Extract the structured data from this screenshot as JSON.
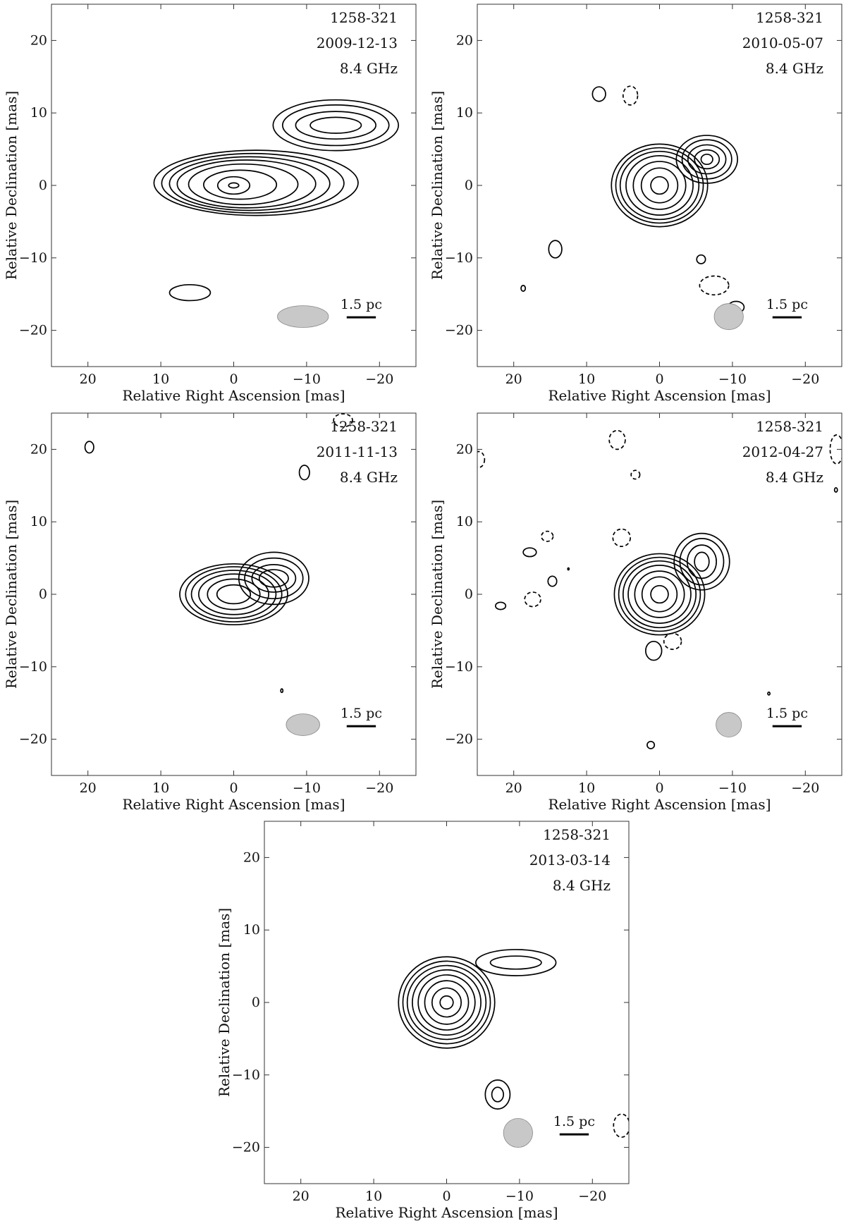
{
  "chart_data": {
    "type": "contour",
    "panels": [
      {
        "source": "1258-321",
        "date": "2009-12-13",
        "frequency": "8.4 GHz",
        "scale_label": "1.5 pc",
        "xlabel": "Relative Right Ascension [mas]",
        "ylabel": "Relative Declination [mas]",
        "xlim": [
          25,
          -25
        ],
        "ylim": [
          -25,
          25
        ],
        "xticks": [
          20,
          10,
          0,
          -10,
          -20
        ],
        "yticks": [
          20,
          10,
          0,
          -10,
          -20
        ],
        "beam": {
          "x": -9.5,
          "y": -18.1,
          "major": 7,
          "minor": 3,
          "pa_deg": 0
        },
        "scalebar": {
          "x1": -15.5,
          "x2": -19.5,
          "y": -18.2
        },
        "components": [
          {
            "x": 0,
            "y": 0,
            "levels": [
              [
                0.7,
                0.35
              ],
              [
                2.2,
                1.2
              ],
              [
                5,
                2
              ],
              [
                7.5,
                2.8
              ],
              [
                9.5,
                3.3
              ],
              [
                11,
                3.7
              ],
              [
                12.5,
                4.1
              ],
              [
                14,
                4.5
              ]
            ],
            "kind": "core",
            "tail_dx": 3.5,
            "tail_dy": 0.4
          },
          {
            "x": -14,
            "y": 8.3,
            "levels": [
              [
                3.5,
                1.1
              ],
              [
                5.5,
                1.9
              ],
              [
                7.3,
                2.8
              ],
              [
                8.6,
                3.5
              ]
            ],
            "kind": "blob"
          },
          {
            "x": 6,
            "y": -14.8,
            "levels": [
              [
                2.8,
                1.1
              ]
            ],
            "kind": "blob"
          }
        ],
        "negative": []
      },
      {
        "source": "1258-321",
        "date": "2010-05-07",
        "frequency": "8.4 GHz",
        "scale_label": "1.5 pc",
        "xlabel": "Relative Right Ascension [mas]",
        "ylabel": "Relative Declination [mas]",
        "xlim": [
          25,
          -25
        ],
        "ylim": [
          -25,
          25
        ],
        "xticks": [
          20,
          10,
          0,
          -10,
          -20
        ],
        "yticks": [
          20,
          10,
          0,
          -10,
          -20
        ],
        "beam": {
          "x": -9.5,
          "y": -18.1,
          "major": 4,
          "minor": 3.6,
          "pa_deg": 0
        },
        "scalebar": {
          "x1": -15.5,
          "x2": -19.5,
          "y": -18.2
        },
        "components": [
          {
            "x": 0,
            "y": 0,
            "levels": [
              [
                1.2,
                1.2
              ],
              [
                2.5,
                2.4
              ],
              [
                3.6,
                3.3
              ],
              [
                4.6,
                4.1
              ],
              [
                5.4,
                4.7
              ],
              [
                6,
                5.2
              ],
              [
                6.6,
                5.7
              ]
            ],
            "kind": "core"
          },
          {
            "x": -6.5,
            "y": 3.6,
            "levels": [
              [
                0.8,
                0.7
              ],
              [
                1.7,
                1.3
              ],
              [
                2.6,
                2
              ],
              [
                3.4,
                2.7
              ],
              [
                4.2,
                3.3
              ]
            ],
            "kind": "blob"
          },
          {
            "x": 8.3,
            "y": 12.6,
            "levels": [
              [
                0.9,
                1
              ]
            ],
            "kind": "blob"
          },
          {
            "x": 14.3,
            "y": -8.8,
            "levels": [
              [
                0.9,
                1.2
              ]
            ],
            "kind": "blob"
          },
          {
            "x": 18.7,
            "y": -14.2,
            "levels": [
              [
                0.3,
                0.4
              ]
            ],
            "kind": "blob"
          },
          {
            "x": -5.7,
            "y": -10.2,
            "levels": [
              [
                0.6,
                0.6
              ]
            ],
            "kind": "blob"
          },
          {
            "x": -10.5,
            "y": -16.8,
            "levels": [
              [
                1.1,
                0.8
              ]
            ],
            "kind": "blob"
          }
        ],
        "negative": [
          {
            "x": 4,
            "y": 12.4,
            "rx": 1,
            "ry": 1.3
          },
          {
            "x": -7.5,
            "y": -13.8,
            "rx": 2,
            "ry": 1.3
          }
        ]
      },
      {
        "source": "1258-321",
        "date": "2011-11-13",
        "frequency": "8.4 GHz",
        "scale_label": "1.5 pc",
        "xlabel": "Relative Right Ascension [mas]",
        "ylabel": "Relative Declination [mas]",
        "xlim": [
          25,
          -25
        ],
        "ylim": [
          -25,
          25
        ],
        "xticks": [
          20,
          10,
          0,
          -10,
          -20
        ],
        "yticks": [
          20,
          10,
          0,
          -10,
          -20
        ],
        "beam": {
          "x": -9.5,
          "y": -18.0,
          "major": 4.6,
          "minor": 3,
          "pa_deg": 0
        },
        "scalebar": {
          "x1": -15.5,
          "x2": -19.5,
          "y": -18.2
        },
        "components": [
          {
            "x": 0,
            "y": 0,
            "levels": [
              [
                2.3,
                1.3
              ],
              [
                3.6,
                2.1
              ],
              [
                4.8,
                2.8
              ],
              [
                5.8,
                3.3
              ],
              [
                6.6,
                3.8
              ],
              [
                7.4,
                4.2
              ]
            ],
            "kind": "core"
          },
          {
            "x": -5.5,
            "y": 2.2,
            "levels": [
              [
                2,
                1.2
              ],
              [
                3,
                1.9
              ],
              [
                4,
                2.8
              ],
              [
                4.8,
                3.6
              ]
            ],
            "kind": "blob"
          },
          {
            "x": 19.8,
            "y": 20.3,
            "levels": [
              [
                0.6,
                0.8
              ]
            ],
            "kind": "blob"
          },
          {
            "x": -9.7,
            "y": 16.8,
            "levels": [
              [
                0.7,
                1
              ]
            ],
            "kind": "blob"
          },
          {
            "x": -6.6,
            "y": -13.3,
            "levels": [
              [
                0.15,
                0.25
              ]
            ],
            "kind": "blob"
          }
        ],
        "negative": [
          {
            "x": -15,
            "y": 24,
            "rx": 1.3,
            "ry": 0.9
          }
        ]
      },
      {
        "source": "1258-321",
        "date": "2012-04-27",
        "frequency": "8.4 GHz",
        "scale_label": "1.5 pc",
        "xlabel": "Relative Right Ascension [mas]",
        "ylabel": "Relative Declination [mas]",
        "xlim": [
          25,
          -25
        ],
        "ylim": [
          -25,
          25
        ],
        "xticks": [
          20,
          10,
          0,
          -10,
          -20
        ],
        "yticks": [
          20,
          10,
          0,
          -10,
          -20
        ],
        "beam": {
          "x": -9.5,
          "y": -18.0,
          "major": 3.5,
          "minor": 3.4,
          "pa_deg": 0
        },
        "scalebar": {
          "x1": -15.5,
          "x2": -19.5,
          "y": -18.2
        },
        "components": [
          {
            "x": 0,
            "y": 0,
            "levels": [
              [
                1.2,
                1.2
              ],
              [
                2.4,
                2.4
              ],
              [
                3.4,
                3.2
              ],
              [
                4.3,
                4
              ],
              [
                5,
                4.6
              ],
              [
                5.6,
                5.1
              ],
              [
                6.2,
                5.6
              ]
            ],
            "kind": "core"
          },
          {
            "x": -5.8,
            "y": 4.5,
            "levels": [
              [
                1,
                1.3
              ],
              [
                2,
                2.3
              ],
              [
                3,
                3.2
              ],
              [
                3.8,
                3.9
              ]
            ],
            "kind": "blob"
          },
          {
            "x": 17.8,
            "y": 5.8,
            "levels": [
              [
                0.9,
                0.6
              ]
            ],
            "kind": "blob"
          },
          {
            "x": 14.7,
            "y": 1.8,
            "levels": [
              [
                0.6,
                0.7
              ]
            ],
            "kind": "blob"
          },
          {
            "x": 21.8,
            "y": -1.6,
            "levels": [
              [
                0.7,
                0.5
              ]
            ],
            "kind": "blob"
          },
          {
            "x": 12.5,
            "y": 3.5,
            "levels": [
              [
                0.1,
                0.15
              ]
            ],
            "kind": "blob"
          },
          {
            "x": 0.8,
            "y": -7.8,
            "levels": [
              [
                1.1,
                1.3
              ]
            ],
            "kind": "blob"
          },
          {
            "x": 1.2,
            "y": -20.8,
            "levels": [
              [
                0.5,
                0.5
              ]
            ],
            "kind": "blob"
          },
          {
            "x": -15,
            "y": -13.7,
            "levels": [
              [
                0.15,
                0.2
              ]
            ],
            "kind": "blob"
          },
          {
            "x": -24.2,
            "y": 14.4,
            "levels": [
              [
                0.2,
                0.3
              ]
            ],
            "kind": "blob"
          }
        ],
        "negative": [
          {
            "x": 5.8,
            "y": 21.3,
            "rx": 1.1,
            "ry": 1.3
          },
          {
            "x": 3.3,
            "y": 16.5,
            "rx": 0.6,
            "ry": 0.6
          },
          {
            "x": 5.2,
            "y": 7.8,
            "rx": 1.2,
            "ry": 1.2
          },
          {
            "x": 15.4,
            "y": 8,
            "rx": 0.8,
            "ry": 0.7
          },
          {
            "x": 17.4,
            "y": -0.7,
            "rx": 1.1,
            "ry": 1
          },
          {
            "x": -1.8,
            "y": -6.5,
            "rx": 1.2,
            "ry": 1.1
          },
          {
            "x": 24.8,
            "y": 18.6,
            "rx": 0.8,
            "ry": 1.1
          },
          {
            "x": -24.3,
            "y": 20,
            "rx": 0.9,
            "ry": 2
          }
        ]
      },
      {
        "source": "1258-321",
        "date": "2013-03-14",
        "frequency": "8.4 GHz",
        "scale_label": "1.5 pc",
        "xlabel": "Relative Right Ascension [mas]",
        "ylabel": "Relative Declination [mas]",
        "xlim": [
          25,
          -25
        ],
        "ylim": [
          -25,
          25
        ],
        "xticks": [
          20,
          10,
          0,
          -10,
          -20
        ],
        "yticks": [
          20,
          10,
          0,
          -10,
          -20
        ],
        "beam": {
          "x": -9.8,
          "y": -18.0,
          "major": 4,
          "minor": 4,
          "pa_deg": 0
        },
        "scalebar": {
          "x1": -15.5,
          "x2": -19.5,
          "y": -18.2
        },
        "components": [
          {
            "x": 0,
            "y": 0,
            "levels": [
              [
                0.9,
                0.9
              ],
              [
                2,
                2
              ],
              [
                3,
                3
              ],
              [
                3.9,
                3.8
              ],
              [
                4.7,
                4.5
              ],
              [
                5.4,
                5.1
              ],
              [
                6,
                5.7
              ],
              [
                6.6,
                6.3
              ]
            ],
            "kind": "core"
          },
          {
            "x": -9.5,
            "y": 5.5,
            "levels": [
              [
                3.5,
                0.9
              ],
              [
                5.5,
                1.8
              ]
            ],
            "kind": "blob"
          },
          {
            "x": -7,
            "y": -12.7,
            "levels": [
              [
                0.8,
                1
              ],
              [
                1.7,
                2
              ]
            ],
            "kind": "blob"
          }
        ],
        "negative": [
          {
            "x": -24,
            "y": -17,
            "rx": 1.1,
            "ry": 1.6
          }
        ]
      }
    ]
  }
}
